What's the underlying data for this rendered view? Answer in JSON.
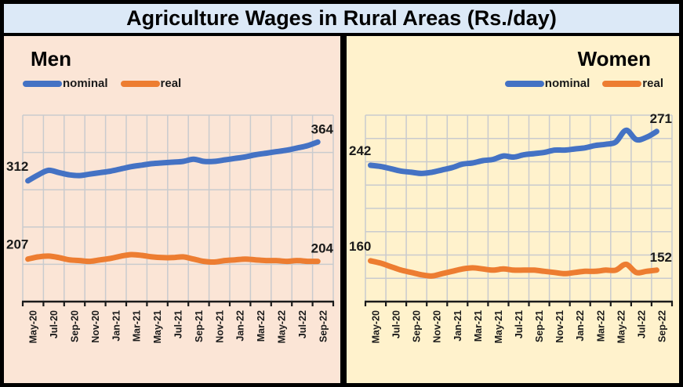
{
  "title": "Agriculture Wages in Rural Areas (Rs./day)",
  "colors": {
    "nominal": "#4472C4",
    "real": "#ED7D31",
    "men_bg": "#FBE5D6",
    "women_bg": "#FFF2CC",
    "title_bg": "#DCE9F7",
    "grid": "#C9CBCE",
    "axis": "#1A1A1A",
    "label_text": "#1A1A1A"
  },
  "chart_data": [
    {
      "type": "line",
      "title": "Men",
      "categories": [
        "May-20",
        "Jun-20",
        "Jul-20",
        "Aug-20",
        "Sep-20",
        "Oct-20",
        "Nov-20",
        "Dec-20",
        "Jan-21",
        "Feb-21",
        "Mar-21",
        "Apr-21",
        "May-21",
        "Jun-21",
        "Jul-21",
        "Aug-21",
        "Sep-21",
        "Oct-21",
        "Nov-21",
        "Dec-21",
        "Jan-22",
        "Feb-22",
        "Mar-22",
        "Apr-22",
        "May-22",
        "Jun-22",
        "Jul-22",
        "Aug-22",
        "Sep-22"
      ],
      "tick_labels": [
        "May-20",
        "Jul-20",
        "Sep-20",
        "Nov-20",
        "Jan-21",
        "Mar-21",
        "May-21",
        "Jul-21",
        "Sep-21",
        "Nov-21",
        "Jan-22",
        "Mar-22",
        "May-22",
        "Jul-22",
        "Sep-22"
      ],
      "xlabel": "",
      "ylabel": "",
      "ylim": [
        150,
        400
      ],
      "y_gridlines": [
        200,
        250,
        300,
        350,
        400
      ],
      "grid": true,
      "legend_position": "top-left",
      "series": [
        {
          "name": "nominal",
          "color": "#4472C4",
          "first_label": "312",
          "last_label": "364",
          "values": [
            312,
            320,
            326,
            323,
            320,
            319,
            321,
            323,
            325,
            328,
            331,
            333,
            335,
            336,
            337,
            338,
            341,
            338,
            338,
            340,
            342,
            344,
            347,
            349,
            351,
            353,
            356,
            359,
            364
          ]
        },
        {
          "name": "real",
          "color": "#ED7D31",
          "first_label": "207",
          "last_label": "204",
          "values": [
            207,
            210,
            211,
            209,
            206,
            205,
            204,
            206,
            208,
            211,
            213,
            212,
            210,
            209,
            209,
            210,
            207,
            204,
            203,
            205,
            206,
            207,
            206,
            205,
            205,
            204,
            205,
            204,
            204
          ]
        }
      ]
    },
    {
      "type": "line",
      "title": "Women",
      "categories": [
        "May-20",
        "Jun-20",
        "Jul-20",
        "Aug-20",
        "Sep-20",
        "Oct-20",
        "Nov-20",
        "Dec-20",
        "Jan-21",
        "Feb-21",
        "Mar-21",
        "Apr-21",
        "May-21",
        "Jun-21",
        "Jul-21",
        "Aug-21",
        "Sep-21",
        "Oct-21",
        "Nov-21",
        "Dec-21",
        "Jan-22",
        "Feb-22",
        "Mar-22",
        "Apr-22",
        "May-22",
        "Jun-22",
        "Jul-22",
        "Aug-22",
        "Sep-22"
      ],
      "tick_labels": [
        "May-20",
        "Jul-20",
        "Sep-20",
        "Nov-20",
        "Jan-21",
        "Mar-21",
        "May-21",
        "Jul-21",
        "Sep-21",
        "Nov-21",
        "Jan-22",
        "Mar-22",
        "May-22",
        "Jul-22",
        "Sep-22"
      ],
      "xlabel": "",
      "ylabel": "",
      "ylim": [
        125,
        285
      ],
      "y_gridlines": [
        145,
        165,
        185,
        205,
        225,
        245,
        265,
        285
      ],
      "grid": true,
      "legend_position": "top-right",
      "series": [
        {
          "name": "nominal",
          "color": "#4472C4",
          "first_label": "242",
          "last_label": "271",
          "values": [
            242,
            241,
            239,
            237,
            236,
            235,
            236,
            238,
            240,
            243,
            244,
            246,
            247,
            250,
            249,
            251,
            252,
            253,
            255,
            255,
            256,
            257,
            259,
            260,
            262,
            272,
            264,
            266,
            271
          ]
        },
        {
          "name": "real",
          "color": "#ED7D31",
          "first_label": "160",
          "last_label": "152",
          "values": [
            160,
            158,
            155,
            152,
            150,
            148,
            147,
            149,
            151,
            153,
            154,
            153,
            152,
            153,
            152,
            152,
            152,
            151,
            150,
            149,
            150,
            151,
            151,
            152,
            152,
            157,
            150,
            151,
            152
          ]
        }
      ]
    }
  ]
}
